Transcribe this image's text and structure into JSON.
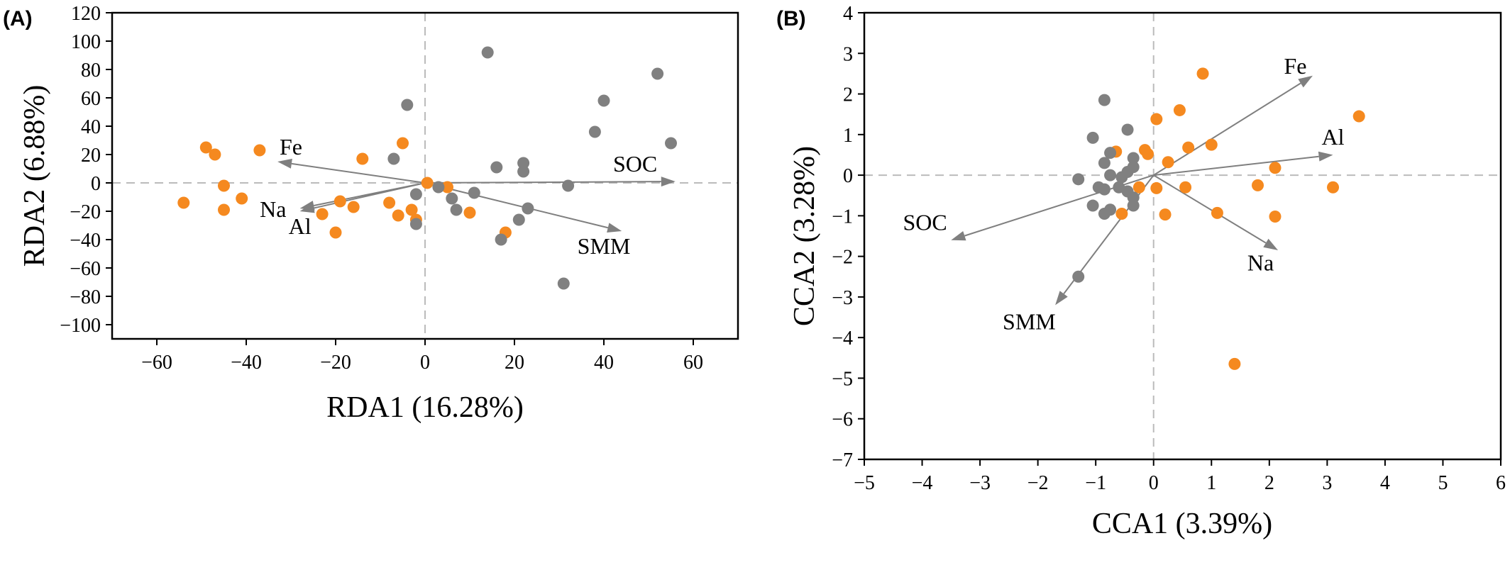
{
  "colors": {
    "group_orange": "#F5891F",
    "group_gray": "#808080",
    "arrow": "#7f7f7f"
  },
  "panels": [
    {
      "label": "(A)",
      "chart_data": {
        "type": "scatter",
        "xlabel": "RDA1 (16.28%)",
        "ylabel": "RDA2 (6.88%)",
        "xlim": [
          -70,
          70
        ],
        "ylim": [
          -110,
          120
        ],
        "xticks": [
          -60,
          -40,
          -20,
          0,
          20,
          40,
          60
        ],
        "xtick_labels": [
          "−60",
          "−40",
          "−20",
          "0",
          "20",
          "40",
          "60"
        ],
        "yticks": [
          -100,
          -80,
          -60,
          -40,
          -20,
          0,
          20,
          40,
          60,
          80,
          100,
          120
        ],
        "ytick_labels": [
          "−100",
          "−80",
          "−60",
          "−40",
          "−20",
          "0",
          "20",
          "40",
          "60",
          "80",
          "100",
          "120"
        ],
        "zero_lines": true,
        "series": [
          {
            "color": "#F5891F",
            "points": [
              [
                -49,
                25
              ],
              [
                -47,
                20
              ],
              [
                -45,
                -2
              ],
              [
                -41,
                -11
              ],
              [
                -45,
                -19
              ],
              [
                -54,
                -14
              ],
              [
                -37,
                23
              ],
              [
                -19,
                -13
              ],
              [
                -14,
                17
              ],
              [
                -16,
                -17
              ],
              [
                -23,
                -22
              ],
              [
                -20,
                -35
              ],
              [
                -5,
                28
              ],
              [
                -8,
                -14
              ],
              [
                -6,
                -23
              ],
              [
                -3,
                -19
              ],
              [
                -2,
                -26
              ],
              [
                0.5,
                0
              ],
              [
                5,
                -3
              ],
              [
                10,
                -21
              ],
              [
                18,
                -35
              ]
            ]
          },
          {
            "color": "#808080",
            "points": [
              [
                -4,
                55
              ],
              [
                -7,
                17
              ],
              [
                -2,
                -8
              ],
              [
                -2,
                -29
              ],
              [
                3,
                -3
              ],
              [
                6,
                -11
              ],
              [
                7,
                -19
              ],
              [
                11,
                -7
              ],
              [
                14,
                92
              ],
              [
                16,
                11
              ],
              [
                22,
                14
              ],
              [
                22,
                8
              ],
              [
                17,
                -40
              ],
              [
                21,
                -26
              ],
              [
                23,
                -18
              ],
              [
                32,
                -2
              ],
              [
                31,
                -71
              ],
              [
                38,
                36
              ],
              [
                40,
                58
              ],
              [
                52,
                77
              ],
              [
                55,
                28
              ]
            ]
          }
        ],
        "vectors": [
          {
            "name": "Fe",
            "x": -33,
            "y": 15,
            "label": [
              -30,
              20
            ]
          },
          {
            "name": "SOC",
            "x": 56,
            "y": 1,
            "label": [
              47,
              8
            ]
          },
          {
            "name": "Na",
            "x": -28,
            "y": -18,
            "label": [
              -34,
              -24
            ]
          },
          {
            "name": "Al",
            "x": -28,
            "y": -20,
            "label": [
              -28,
              -36
            ]
          },
          {
            "name": "SMM",
            "x": 44,
            "y": -34,
            "label": [
              40,
              -50
            ]
          }
        ]
      }
    },
    {
      "label": "(B)",
      "chart_data": {
        "type": "scatter",
        "xlabel": "CCA1 (3.39%)",
        "ylabel": "CCA2 (3.28%)",
        "xlim": [
          -5,
          6
        ],
        "ylim": [
          -7,
          4
        ],
        "xticks": [
          -5,
          -4,
          -3,
          -2,
          -1,
          0,
          1,
          2,
          3,
          4,
          5,
          6
        ],
        "xtick_labels": [
          "−5",
          "−4",
          "−3",
          "−2",
          "−1",
          "0",
          "1",
          "2",
          "3",
          "4",
          "5",
          "6"
        ],
        "yticks": [
          -7,
          -6,
          -5,
          -4,
          -3,
          -2,
          -1,
          0,
          1,
          2,
          3,
          4
        ],
        "ytick_labels": [
          "−7",
          "−6",
          "−5",
          "−4",
          "−3",
          "−2",
          "−1",
          "0",
          "1",
          "2",
          "3",
          "4"
        ],
        "zero_lines": true,
        "series": [
          {
            "color": "#F5891F",
            "points": [
              [
                0.85,
                2.5
              ],
              [
                0.45,
                1.6
              ],
              [
                0.05,
                1.38
              ],
              [
                3.55,
                1.45
              ],
              [
                1,
                0.75
              ],
              [
                0.6,
                0.68
              ],
              [
                -0.15,
                0.62
              ],
              [
                -0.65,
                0.58
              ],
              [
                -0.1,
                0.52
              ],
              [
                0.25,
                0.32
              ],
              [
                2.1,
                0.18
              ],
              [
                -0.25,
                -0.3
              ],
              [
                0.05,
                -0.32
              ],
              [
                0.55,
                -0.3
              ],
              [
                1.8,
                -0.25
              ],
              [
                3.1,
                -0.3
              ],
              [
                -0.55,
                -0.95
              ],
              [
                0.2,
                -0.97
              ],
              [
                1.1,
                -0.93
              ],
              [
                2.1,
                -1.02
              ],
              [
                1.4,
                -4.65
              ]
            ]
          },
          {
            "color": "#808080",
            "points": [
              [
                -0.85,
                1.85
              ],
              [
                -0.45,
                1.12
              ],
              [
                -1.05,
                0.92
              ],
              [
                -0.75,
                0.55
              ],
              [
                -0.35,
                0.42
              ],
              [
                -0.85,
                0.3
              ],
              [
                -0.35,
                0.2
              ],
              [
                -0.45,
                0.08
              ],
              [
                -0.75,
                0
              ],
              [
                -0.55,
                -0.05
              ],
              [
                -1.3,
                -0.1
              ],
              [
                -0.95,
                -0.3
              ],
              [
                -0.85,
                -0.35
              ],
              [
                -0.6,
                -0.3
              ],
              [
                -0.45,
                -0.4
              ],
              [
                -0.35,
                -0.55
              ],
              [
                -1.05,
                -0.75
              ],
              [
                -0.35,
                -0.75
              ],
              [
                -0.75,
                -0.85
              ],
              [
                -0.85,
                -0.95
              ],
              [
                -1.3,
                -2.5
              ]
            ]
          }
        ],
        "vectors": [
          {
            "name": "Fe",
            "x": 2.75,
            "y": 2.45,
            "label": [
              2.45,
              2.5
            ]
          },
          {
            "name": "Al",
            "x": 3.1,
            "y": 0.5,
            "label": [
              3.1,
              0.75
            ]
          },
          {
            "name": "SOC",
            "x": -3.5,
            "y": -1.6,
            "label": [
              -3.95,
              -1.35
            ]
          },
          {
            "name": "Na",
            "x": 2.15,
            "y": -1.85,
            "label": [
              1.85,
              -2.35
            ]
          },
          {
            "name": "SMM",
            "x": -1.7,
            "y": -3.2,
            "label": [
              -2.15,
              -3.8
            ]
          }
        ]
      }
    }
  ]
}
